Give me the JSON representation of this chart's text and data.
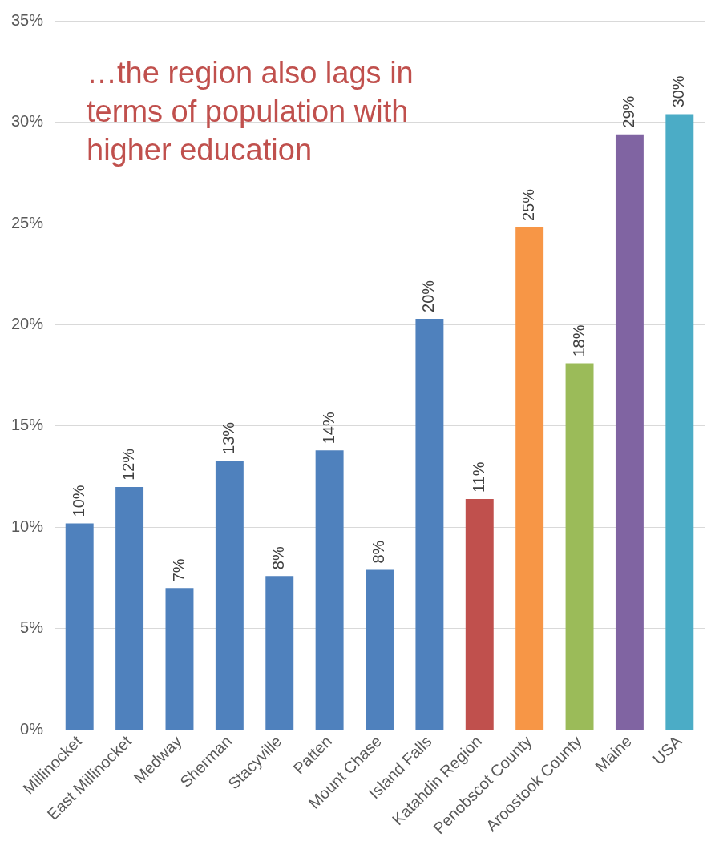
{
  "chart_data": {
    "type": "bar",
    "categories": [
      "Millinocket",
      "East Millinocket",
      "Medway",
      "Sherman",
      "Stacyville",
      "Patten",
      "Mount Chase",
      "Island Falls",
      "Katahdin Region",
      "Penobscot County",
      "Aroostook County",
      "Maine",
      "USA"
    ],
    "values": [
      10.2,
      12.0,
      7.0,
      13.3,
      7.6,
      13.8,
      7.9,
      20.3,
      11.4,
      24.8,
      18.1,
      29.4,
      30.4
    ],
    "colors": [
      "#4f81bd",
      "#4f81bd",
      "#4f81bd",
      "#4f81bd",
      "#4f81bd",
      "#4f81bd",
      "#4f81bd",
      "#4f81bd",
      "#c0504d",
      "#f79646",
      "#9bbb59",
      "#8064a2",
      "#4bacc6"
    ],
    "value_labels": [
      "10%",
      "12%",
      "7%",
      "13%",
      "8%",
      "14%",
      "8%",
      "20%",
      "11%",
      "25%",
      "18%",
      "29%",
      "30%"
    ],
    "ylim": [
      0,
      35
    ],
    "yticks": [
      {
        "value": 0,
        "label": "0%"
      },
      {
        "value": 5,
        "label": "5%"
      },
      {
        "value": 10,
        "label": "10%"
      },
      {
        "value": 15,
        "label": "15%"
      },
      {
        "value": 20,
        "label": "20%"
      },
      {
        "value": 25,
        "label": "25%"
      },
      {
        "value": 30,
        "label": "30%"
      },
      {
        "value": 35,
        "label": "35%"
      }
    ],
    "grid": "y",
    "legend": false,
    "annotations": [
      "…the region also lags in terms of population with higher education"
    ]
  }
}
